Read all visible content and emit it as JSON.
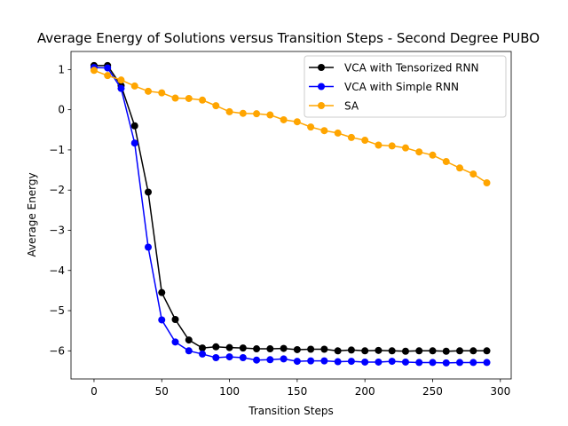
{
  "chart_data": {
    "type": "line",
    "title": "Average Energy of Solutions versus Transition Steps - Second Degree PUBO",
    "xlabel": "Transition Steps",
    "ylabel": "Average Energy",
    "xlim": [
      -17,
      308
    ],
    "ylim": [
      -6.7,
      1.45
    ],
    "xticks": [
      0,
      50,
      100,
      150,
      200,
      250,
      300
    ],
    "yticks": [
      1,
      0,
      -1,
      -2,
      -3,
      -4,
      -5,
      -6
    ],
    "legend_position": "top-right",
    "grid": false,
    "x": [
      0,
      10,
      20,
      30,
      40,
      50,
      60,
      70,
      80,
      90,
      100,
      110,
      120,
      130,
      140,
      150,
      160,
      170,
      180,
      190,
      200,
      210,
      220,
      230,
      240,
      250,
      260,
      270,
      280,
      290
    ],
    "series": [
      {
        "name": "VCA with Tensorized RNN",
        "color": "#000000",
        "values": [
          1.1,
          1.1,
          0.6,
          -0.4,
          -2.05,
          -4.55,
          -5.22,
          -5.73,
          -5.93,
          -5.9,
          -5.92,
          -5.93,
          -5.95,
          -5.95,
          -5.94,
          -5.97,
          -5.96,
          -5.96,
          -6.0,
          -5.98,
          -6.0,
          -5.99,
          -6.0,
          -6.01,
          -6.0,
          -6.0,
          -6.01,
          -6.0,
          -6.0,
          -6.0
        ]
      },
      {
        "name": "VCA with Simple RNN",
        "color": "#0000ff",
        "values": [
          1.05,
          1.04,
          0.53,
          -0.83,
          -3.42,
          -5.23,
          -5.78,
          -6.0,
          -6.08,
          -6.17,
          -6.15,
          -6.17,
          -6.23,
          -6.22,
          -6.2,
          -6.26,
          -6.25,
          -6.25,
          -6.27,
          -6.26,
          -6.28,
          -6.28,
          -6.26,
          -6.28,
          -6.29,
          -6.29,
          -6.3,
          -6.29,
          -6.29,
          -6.29
        ]
      },
      {
        "name": "SA",
        "color": "#ffa500",
        "values": [
          0.98,
          0.85,
          0.74,
          0.59,
          0.46,
          0.42,
          0.29,
          0.28,
          0.24,
          0.1,
          -0.05,
          -0.09,
          -0.1,
          -0.13,
          -0.25,
          -0.3,
          -0.43,
          -0.52,
          -0.58,
          -0.69,
          -0.76,
          -0.88,
          -0.9,
          -0.95,
          -1.05,
          -1.13,
          -1.29,
          -1.45,
          -1.6,
          -1.82
        ]
      }
    ]
  }
}
